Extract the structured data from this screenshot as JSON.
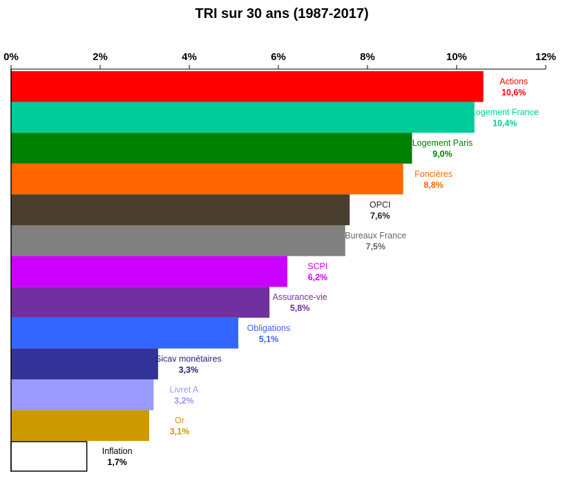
{
  "chart_data": {
    "type": "bar",
    "orientation": "horizontal",
    "title": "TRI sur 30 ans (1987-2017)",
    "xlabel": "",
    "ylabel": "",
    "xlim": [
      0,
      12
    ],
    "tick_values": [
      0,
      2,
      4,
      6,
      8,
      10,
      12
    ],
    "tick_labels": [
      "0%",
      "2%",
      "4%",
      "6%",
      "8%",
      "10%",
      "12%"
    ],
    "axis_position": "top",
    "grid": false,
    "legend": "none",
    "bars": [
      {
        "category": "Actions",
        "value": 10.6,
        "value_label": "10,6%",
        "color": "#ff0000",
        "label_color": "#ff0000"
      },
      {
        "category": "Logement France",
        "value": 10.4,
        "value_label": "10,4%",
        "color": "#00cc99",
        "label_color": "#00cc99"
      },
      {
        "category": "Logement Paris",
        "value": 9.0,
        "value_label": "9,0%",
        "color": "#008000",
        "label_color": "#008000"
      },
      {
        "category": "Foncières",
        "value": 8.8,
        "value_label": "8,8%",
        "color": "#ff6600",
        "label_color": "#ff6600"
      },
      {
        "category": "OPCI",
        "value": 7.6,
        "value_label": "7,6%",
        "color": "#4a3f2e",
        "label_color": "#222222"
      },
      {
        "category": "Bureaux France",
        "value": 7.5,
        "value_label": "7,5%",
        "color": "#808080",
        "label_color": "#666666"
      },
      {
        "category": "SCPI",
        "value": 6.2,
        "value_label": "6,2%",
        "color": "#cc00ff",
        "label_color": "#cc00ff"
      },
      {
        "category": "Assurance-vie",
        "value": 5.8,
        "value_label": "5,8%",
        "color": "#7030a0",
        "label_color": "#7030a0"
      },
      {
        "category": "Obligations",
        "value": 5.1,
        "value_label": "5,1%",
        "color": "#3366ff",
        "label_color": "#3366ff"
      },
      {
        "category": "Sicav monétaires",
        "value": 3.3,
        "value_label": "3,3%",
        "color": "#333399",
        "label_color": "#1f1f7a"
      },
      {
        "category": "Livret A",
        "value": 3.2,
        "value_label": "3,2%",
        "color": "#9999ff",
        "label_color": "#9999ff"
      },
      {
        "category": "Or",
        "value": 3.1,
        "value_label": "3,1%",
        "color": "#cc9900",
        "label_color": "#cc9900"
      },
      {
        "category": "Inflation",
        "value": 1.7,
        "value_label": "1,7%",
        "color": "#ffffff",
        "label_color": "#000000",
        "outline": "#000000"
      }
    ]
  }
}
